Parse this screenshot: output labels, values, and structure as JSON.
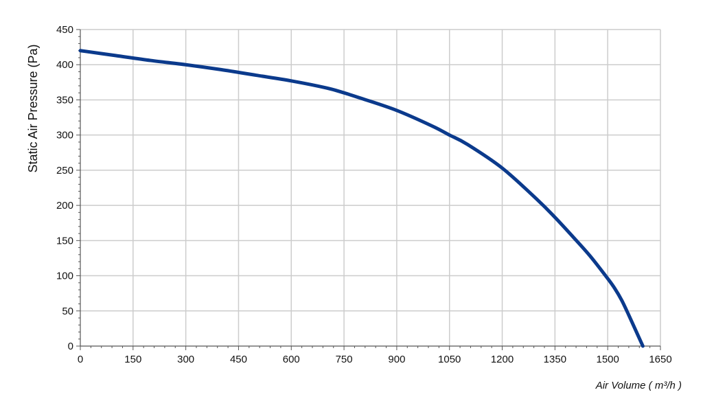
{
  "chart_data": {
    "type": "line",
    "title": "",
    "xlabel": "Air Volume ( m³/h )",
    "ylabel": "Static Air Pressure  (Pa)",
    "xlim": [
      0,
      1650
    ],
    "ylim": [
      0,
      450
    ],
    "x_ticks": [
      0,
      150,
      300,
      450,
      600,
      750,
      900,
      1050,
      1200,
      1350,
      1500,
      1650
    ],
    "y_ticks": [
      0,
      50,
      100,
      150,
      200,
      250,
      300,
      350,
      400,
      450
    ],
    "grid": true,
    "legend": "none",
    "series": [
      {
        "color": "#0b3a8c",
        "x": [
          0,
          100,
          200,
          300,
          400,
          500,
          600,
          700,
          750,
          800,
          900,
          1000,
          1050,
          1100,
          1200,
          1300,
          1350,
          1400,
          1450,
          1500,
          1520,
          1540,
          1560,
          1580,
          1600
        ],
        "y": [
          420,
          413,
          406,
          400,
          393,
          385,
          377,
          367,
          360,
          352,
          335,
          313,
          300,
          287,
          253,
          208,
          183,
          156,
          128,
          96,
          82,
          65,
          44,
          22,
          0
        ]
      }
    ]
  },
  "colors": {
    "grid": "#cccccc",
    "axis": "#555555",
    "text": "#111111",
    "line": "#0b3a8c"
  }
}
